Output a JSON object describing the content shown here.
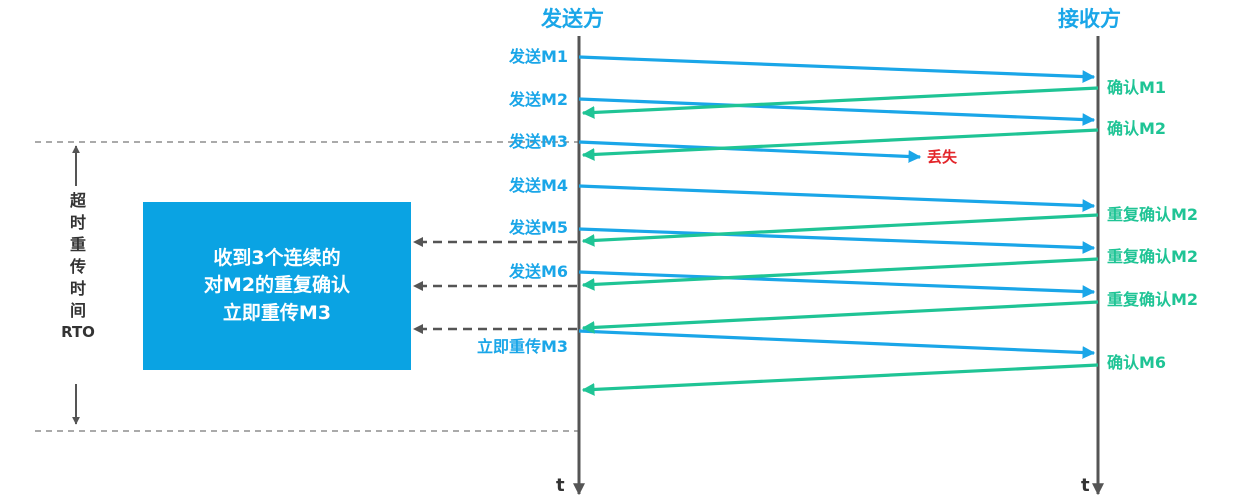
{
  "headers": {
    "sender": "发送方",
    "receiver": "接收方"
  },
  "axis_label": "t",
  "colors": {
    "send": "#1aa6e8",
    "ack": "#1fc495",
    "lost": "#e3262b",
    "box": "#0aa3e3",
    "axis": "#555555"
  },
  "sends": [
    {
      "label": "发送M1"
    },
    {
      "label": "发送M2"
    },
    {
      "label": "发送M3"
    },
    {
      "label": "发送M4"
    },
    {
      "label": "发送M5"
    },
    {
      "label": "发送M6"
    },
    {
      "label": "立即重传M3"
    }
  ],
  "acks": [
    {
      "label": "确认M1"
    },
    {
      "label": "确认M2"
    },
    {
      "label": "重复确认M2"
    },
    {
      "label": "重复确认M2"
    },
    {
      "label": "重复确认M2"
    },
    {
      "label": "确认M6"
    }
  ],
  "lost_label": "丢失",
  "rto_label": [
    "超",
    "时",
    "重",
    "传",
    "时",
    "间",
    "RTO"
  ],
  "fast_retransmit": {
    "line1": "收到3个连续的",
    "line2": "对M2的重复确认",
    "line3": "立即重传M3"
  }
}
